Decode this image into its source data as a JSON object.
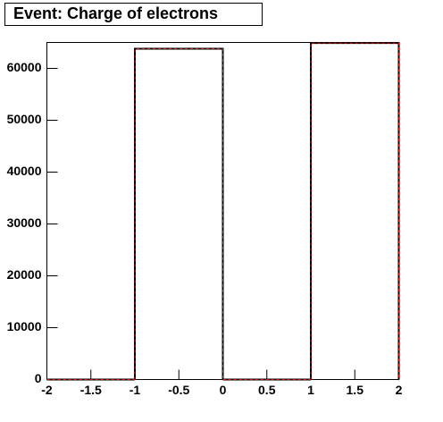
{
  "chart_data": {
    "type": "histogram",
    "title": "Event: Charge of electrons",
    "bins": [
      -2,
      -1,
      0,
      1,
      2
    ],
    "values": [
      0,
      63800,
      0,
      64900
    ],
    "color": "#000000",
    "overlay_color": "#ff0000",
    "xlim": [
      -2,
      2
    ],
    "xticks": [
      -2,
      -1.5,
      -1,
      -0.5,
      0,
      0.5,
      1,
      1.5,
      2
    ],
    "ylim": [
      0,
      65000
    ],
    "yticks": [
      0,
      10000,
      20000,
      30000,
      40000,
      50000,
      60000
    ]
  }
}
